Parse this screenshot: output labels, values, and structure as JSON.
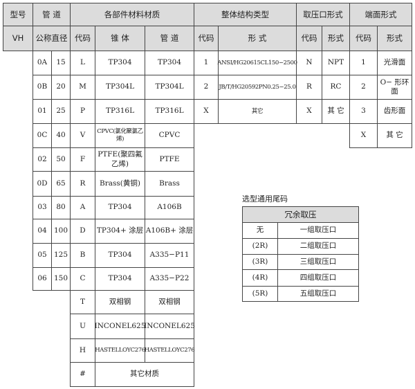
{
  "header": {
    "model": "型号",
    "pipe": "管 道",
    "materials": "各部件材料材质",
    "structure": "整体结构类型",
    "port": "取压口形式",
    "end_face": "端面形式"
  },
  "subheader": {
    "model_code": "VH",
    "nominal_diameter": "公称直径",
    "material_code": "代码",
    "cone": "锥 体",
    "pipe": "管 道",
    "structure_code": "代码",
    "structure_form": "形 式",
    "port_code": "代码",
    "port_form": "形式",
    "end_code": "代码",
    "end_form": "形式"
  },
  "pipe_sizes": [
    [
      "0A",
      "15"
    ],
    [
      "0B",
      "20"
    ],
    [
      "01",
      "25"
    ],
    [
      "0C",
      "40"
    ],
    [
      "02",
      "50"
    ],
    [
      "0D",
      "65"
    ],
    [
      "03",
      "80"
    ],
    [
      "04",
      "100"
    ],
    [
      "05",
      "125"
    ],
    [
      "06",
      "150"
    ]
  ],
  "materials": [
    [
      "L",
      "TP304",
      "TP304"
    ],
    [
      "M",
      "TP304L",
      "TP304L"
    ],
    [
      "P",
      "TP316L",
      "TP316L"
    ],
    [
      "V",
      "CPVC(氯化聚氯乙烯)",
      "CPVC"
    ],
    [
      "F",
      "PTFE(聚四氟乙烯)",
      "PTFE"
    ],
    [
      "R",
      "Brass(黄铜)",
      "Brass"
    ],
    [
      "A",
      "TP304",
      "A106B"
    ],
    [
      "D",
      "TP304+ 涂层",
      "A106B+ 涂层"
    ],
    [
      "B",
      "TP304",
      "A335−P11"
    ],
    [
      "C",
      "TP304",
      "A335−P22"
    ],
    [
      "T",
      "双相钢",
      "双相钢"
    ],
    [
      "U",
      "INCONEL625",
      "INCONEL625"
    ],
    [
      "H",
      "HASTELLOYC276",
      "HASTELLOYC276"
    ],
    [
      "#",
      "其它材质"
    ]
  ],
  "structures": [
    [
      "1",
      "ANSI/HG20615CL150−2500"
    ],
    [
      "2",
      "JB/T/HG20592PN0.25−25.0"
    ],
    [
      "X",
      "其它"
    ]
  ],
  "ports": [
    [
      "N",
      "NPT"
    ],
    [
      "R",
      "RC"
    ],
    [
      "X",
      "其 它"
    ]
  ],
  "end_faces": [
    [
      "1",
      "光滑面"
    ],
    [
      "2",
      "O− 形环面"
    ],
    [
      "3",
      "齿形面"
    ],
    [
      "X",
      "其 它"
    ]
  ],
  "suffix": {
    "title": "选型通用尾码",
    "header": "冗余取压",
    "rows": [
      [
        "无",
        "一组取压口"
      ],
      [
        "(2R)",
        "二组取压口"
      ],
      [
        "(3R)",
        "三组取压口"
      ],
      [
        "(4R)",
        "四组取压口"
      ],
      [
        "(5R)",
        "五组取压口"
      ]
    ]
  }
}
